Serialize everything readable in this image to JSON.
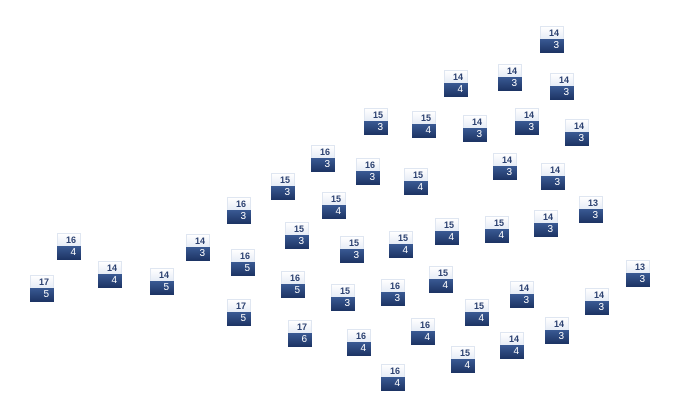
{
  "colors": {
    "label_top_text": "#2c4170",
    "label_bottom_bg": "#1c3363",
    "label_top_bg": "#ffffff"
  },
  "markers": [
    {
      "top": "14",
      "bottom": "3"
    },
    {
      "top": "14",
      "bottom": "4"
    },
    {
      "top": "14",
      "bottom": "3"
    },
    {
      "top": "14",
      "bottom": "3"
    },
    {
      "top": "15",
      "bottom": "3"
    },
    {
      "top": "15",
      "bottom": "4"
    },
    {
      "top": "14",
      "bottom": "3"
    },
    {
      "top": "14",
      "bottom": "3"
    },
    {
      "top": "14",
      "bottom": "3"
    },
    {
      "top": "16",
      "bottom": "3"
    },
    {
      "top": "16",
      "bottom": "3"
    },
    {
      "top": "15",
      "bottom": "4"
    },
    {
      "top": "14",
      "bottom": "3"
    },
    {
      "top": "14",
      "bottom": "3"
    },
    {
      "top": "15",
      "bottom": "3"
    },
    {
      "top": "15",
      "bottom": "4"
    },
    {
      "top": "16",
      "bottom": "3"
    },
    {
      "top": "13",
      "bottom": "3"
    },
    {
      "top": "15",
      "bottom": "4"
    },
    {
      "top": "15",
      "bottom": "4"
    },
    {
      "top": "14",
      "bottom": "3"
    },
    {
      "top": "14",
      "bottom": "3"
    },
    {
      "top": "15",
      "bottom": "3"
    },
    {
      "top": "15",
      "bottom": "3"
    },
    {
      "top": "15",
      "bottom": "4"
    },
    {
      "top": "16",
      "bottom": "4"
    },
    {
      "top": "16",
      "bottom": "5"
    },
    {
      "top": "14",
      "bottom": "4"
    },
    {
      "top": "14",
      "bottom": "5"
    },
    {
      "top": "13",
      "bottom": "3"
    },
    {
      "top": "16",
      "bottom": "5"
    },
    {
      "top": "15",
      "bottom": "4"
    },
    {
      "top": "17",
      "bottom": "5"
    },
    {
      "top": "16",
      "bottom": "3"
    },
    {
      "top": "14",
      "bottom": "3"
    },
    {
      "top": "15",
      "bottom": "3"
    },
    {
      "top": "14",
      "bottom": "3"
    },
    {
      "top": "15",
      "bottom": "4"
    },
    {
      "top": "17",
      "bottom": "5"
    },
    {
      "top": "17",
      "bottom": "6"
    },
    {
      "top": "16",
      "bottom": "4"
    },
    {
      "top": "14",
      "bottom": "3"
    },
    {
      "top": "16",
      "bottom": "4"
    },
    {
      "top": "14",
      "bottom": "4"
    },
    {
      "top": "15",
      "bottom": "4"
    },
    {
      "top": "16",
      "bottom": "4"
    }
  ]
}
